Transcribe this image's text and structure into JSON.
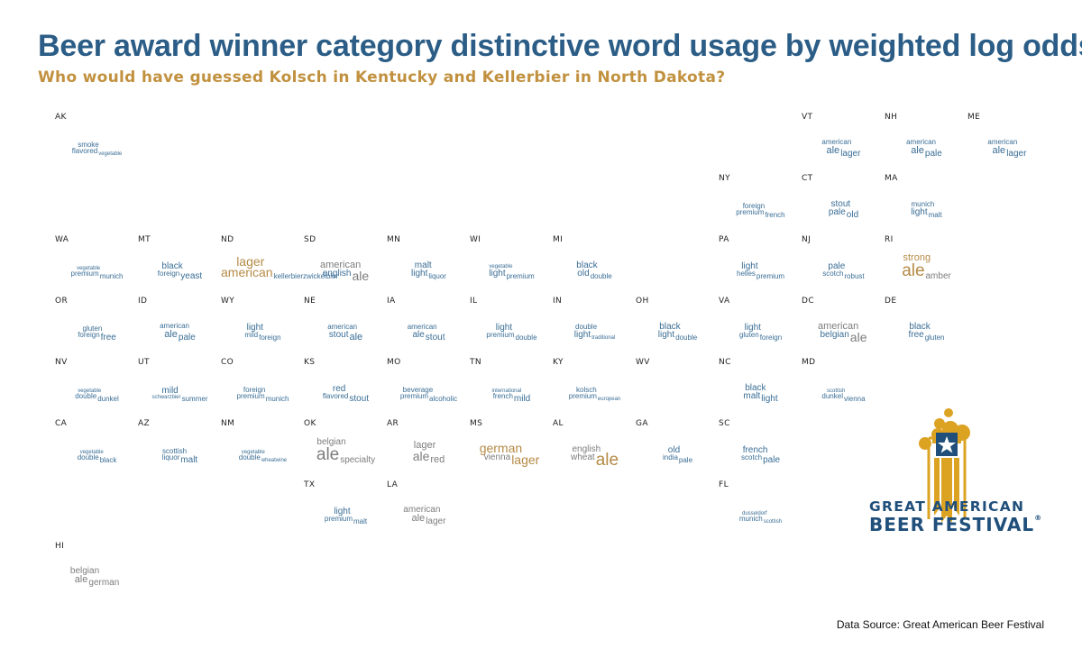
{
  "header": {
    "title": "Beer award winner category distinctive word usage by weighted log odds",
    "subtitle": "Who would have guessed Kolsch in Kentucky and Kellerbier in North Dakota?"
  },
  "footer": {
    "source": "Data Source: Great American Beer Festival"
  },
  "logo": {
    "line1": "GREAT AMERICAN",
    "line2": "BEER FESTIVAL",
    "mark": "®"
  },
  "colors": {
    "title": "#2b5d86",
    "subtitle": "#c1913f",
    "blue": "#3a6e96",
    "grey": "#7d7d7d",
    "gold": "#b58b46",
    "logo_gold": "#dca323",
    "logo_blue": "#1f4f7a"
  },
  "states": [
    {
      "abbr": "AK",
      "words": [
        {
          "t": "smoke",
          "c": "b",
          "s": 1
        },
        {
          "t": "flavored",
          "c": "b",
          "s": 1
        },
        {
          "t": "vegetable",
          "c": "b",
          "s": 0
        }
      ]
    },
    {
      "abbr": "VT",
      "words": [
        {
          "t": "american",
          "c": "b",
          "s": 1
        },
        {
          "t": "ale",
          "c": "b",
          "s": 3
        },
        {
          "t": "lager",
          "c": "b",
          "s": 2
        }
      ]
    },
    {
      "abbr": "NH",
      "words": [
        {
          "t": "american",
          "c": "b",
          "s": 1
        },
        {
          "t": "ale",
          "c": "b",
          "s": 3
        },
        {
          "t": "pale",
          "c": "b",
          "s": 2
        }
      ]
    },
    {
      "abbr": "ME",
      "words": [
        {
          "t": "american",
          "c": "b",
          "s": 1
        },
        {
          "t": "ale",
          "c": "b",
          "s": 3
        },
        {
          "t": "lager",
          "c": "b",
          "s": 2
        }
      ]
    },
    {
      "abbr": "NY",
      "words": [
        {
          "t": "foreign",
          "c": "b",
          "s": 1
        },
        {
          "t": "premium",
          "c": "b",
          "s": 1
        },
        {
          "t": "french",
          "c": "b",
          "s": 1
        }
      ]
    },
    {
      "abbr": "CT",
      "words": [
        {
          "t": "stout",
          "c": "b",
          "s": 2
        },
        {
          "t": "pale",
          "c": "b",
          "s": 2
        },
        {
          "t": "old",
          "c": "b",
          "s": 2
        }
      ]
    },
    {
      "abbr": "MA",
      "words": [
        {
          "t": "munich",
          "c": "b",
          "s": 1
        },
        {
          "t": "light",
          "c": "b",
          "s": 2
        },
        {
          "t": "malt",
          "c": "b",
          "s": 1
        }
      ]
    },
    {
      "abbr": "WA",
      "words": [
        {
          "t": "vegetable",
          "c": "b",
          "s": 0
        },
        {
          "t": "premium",
          "c": "b",
          "s": 1
        },
        {
          "t": "munich",
          "c": "b",
          "s": 1
        }
      ]
    },
    {
      "abbr": "MT",
      "words": [
        {
          "t": "black",
          "c": "b",
          "s": 2
        },
        {
          "t": "foreign",
          "c": "b",
          "s": 1
        },
        {
          "t": "yeast",
          "c": "b",
          "s": 2
        }
      ]
    },
    {
      "abbr": "ND",
      "words": [
        {
          "t": "lager",
          "c": "g",
          "s": 4
        },
        {
          "t": "american",
          "c": "g",
          "s": 4
        },
        {
          "t": "kellerbierzwickelbier",
          "c": "b",
          "s": 1
        }
      ]
    },
    {
      "abbr": "SD",
      "words": [
        {
          "t": "american",
          "c": "y",
          "s": 3
        },
        {
          "t": "english",
          "c": "b",
          "s": 2
        },
        {
          "t": "ale",
          "c": "y",
          "s": 4
        }
      ]
    },
    {
      "abbr": "MN",
      "words": [
        {
          "t": "malt",
          "c": "b",
          "s": 2
        },
        {
          "t": "light",
          "c": "b",
          "s": 2
        },
        {
          "t": "liquor",
          "c": "b",
          "s": 1
        }
      ]
    },
    {
      "abbr": "WI",
      "words": [
        {
          "t": "vegetable",
          "c": "b",
          "s": 0
        },
        {
          "t": "light",
          "c": "b",
          "s": 2
        },
        {
          "t": "premium",
          "c": "b",
          "s": 1
        }
      ]
    },
    {
      "abbr": "MI",
      "words": [
        {
          "t": "black",
          "c": "b",
          "s": 2
        },
        {
          "t": "old",
          "c": "b",
          "s": 2
        },
        {
          "t": "double",
          "c": "b",
          "s": 1
        }
      ]
    },
    {
      "abbr": "PA",
      "words": [
        {
          "t": "light",
          "c": "b",
          "s": 2
        },
        {
          "t": "helles",
          "c": "b",
          "s": 1
        },
        {
          "t": "premium",
          "c": "b",
          "s": 1
        }
      ]
    },
    {
      "abbr": "NJ",
      "words": [
        {
          "t": "pale",
          "c": "b",
          "s": 2
        },
        {
          "t": "scotch",
          "c": "b",
          "s": 1
        },
        {
          "t": "robust",
          "c": "b",
          "s": 1
        }
      ]
    },
    {
      "abbr": "RI",
      "words": [
        {
          "t": "strong",
          "c": "g",
          "s": 3
        },
        {
          "t": "ale",
          "c": "g",
          "s": 5
        },
        {
          "t": "amber",
          "c": "y",
          "s": 2
        }
      ]
    },
    {
      "abbr": "OR",
      "words": [
        {
          "t": "gluten",
          "c": "b",
          "s": 1
        },
        {
          "t": "foreign",
          "c": "b",
          "s": 1
        },
        {
          "t": "free",
          "c": "b",
          "s": 2
        }
      ]
    },
    {
      "abbr": "ID",
      "words": [
        {
          "t": "american",
          "c": "b",
          "s": 1
        },
        {
          "t": "ale",
          "c": "b",
          "s": 3
        },
        {
          "t": "pale",
          "c": "b",
          "s": 2
        }
      ]
    },
    {
      "abbr": "WY",
      "words": [
        {
          "t": "light",
          "c": "b",
          "s": 2
        },
        {
          "t": "mild",
          "c": "b",
          "s": 1
        },
        {
          "t": "foreign",
          "c": "b",
          "s": 1
        }
      ]
    },
    {
      "abbr": "NE",
      "words": [
        {
          "t": "american",
          "c": "b",
          "s": 1
        },
        {
          "t": "stout",
          "c": "b",
          "s": 2
        },
        {
          "t": "ale",
          "c": "b",
          "s": 3
        }
      ]
    },
    {
      "abbr": "IA",
      "words": [
        {
          "t": "american",
          "c": "b",
          "s": 1
        },
        {
          "t": "ale",
          "c": "b",
          "s": 2
        },
        {
          "t": "stout",
          "c": "b",
          "s": 2
        }
      ]
    },
    {
      "abbr": "IL",
      "words": [
        {
          "t": "light",
          "c": "b",
          "s": 2
        },
        {
          "t": "premium",
          "c": "b",
          "s": 1
        },
        {
          "t": "double",
          "c": "b",
          "s": 1
        }
      ]
    },
    {
      "abbr": "IN",
      "words": [
        {
          "t": "double",
          "c": "b",
          "s": 1
        },
        {
          "t": "light",
          "c": "b",
          "s": 2
        },
        {
          "t": "traditional",
          "c": "b",
          "s": 0
        }
      ]
    },
    {
      "abbr": "OH",
      "words": [
        {
          "t": "black",
          "c": "b",
          "s": 2
        },
        {
          "t": "light",
          "c": "b",
          "s": 2
        },
        {
          "t": "double",
          "c": "b",
          "s": 1
        }
      ]
    },
    {
      "abbr": "VA",
      "words": [
        {
          "t": "light",
          "c": "b",
          "s": 2
        },
        {
          "t": "gluten",
          "c": "b",
          "s": 1
        },
        {
          "t": "foreign",
          "c": "b",
          "s": 1
        }
      ]
    },
    {
      "abbr": "DC",
      "words": [
        {
          "t": "american",
          "c": "y",
          "s": 3
        },
        {
          "t": "belgian",
          "c": "b",
          "s": 2
        },
        {
          "t": "ale",
          "c": "y",
          "s": 4
        }
      ]
    },
    {
      "abbr": "DE",
      "words": [
        {
          "t": "black",
          "c": "b",
          "s": 2
        },
        {
          "t": "free",
          "c": "b",
          "s": 2
        },
        {
          "t": "gluten",
          "c": "b",
          "s": 1
        }
      ]
    },
    {
      "abbr": "NV",
      "words": [
        {
          "t": "vegetable",
          "c": "b",
          "s": 0
        },
        {
          "t": "double",
          "c": "b",
          "s": 1
        },
        {
          "t": "dunkel",
          "c": "b",
          "s": 1
        }
      ]
    },
    {
      "abbr": "UT",
      "words": [
        {
          "t": "mild",
          "c": "b",
          "s": 2
        },
        {
          "t": "schwarzbier",
          "c": "b",
          "s": 0
        },
        {
          "t": "summer",
          "c": "b",
          "s": 1
        }
      ]
    },
    {
      "abbr": "CO",
      "words": [
        {
          "t": "foreign",
          "c": "b",
          "s": 1
        },
        {
          "t": "premium",
          "c": "b",
          "s": 1
        },
        {
          "t": "munich",
          "c": "b",
          "s": 1
        }
      ]
    },
    {
      "abbr": "KS",
      "words": [
        {
          "t": "red",
          "c": "b",
          "s": 2
        },
        {
          "t": "flavored",
          "c": "b",
          "s": 1
        },
        {
          "t": "stout",
          "c": "b",
          "s": 2
        }
      ]
    },
    {
      "abbr": "MO",
      "words": [
        {
          "t": "beverage",
          "c": "b",
          "s": 1
        },
        {
          "t": "premium",
          "c": "b",
          "s": 1
        },
        {
          "t": "alcoholic",
          "c": "b",
          "s": 1
        }
      ]
    },
    {
      "abbr": "TN",
      "words": [
        {
          "t": "international",
          "c": "b",
          "s": 0
        },
        {
          "t": "french",
          "c": "b",
          "s": 1
        },
        {
          "t": "mild",
          "c": "b",
          "s": 2
        }
      ]
    },
    {
      "abbr": "KY",
      "words": [
        {
          "t": "kolsch",
          "c": "b",
          "s": 1
        },
        {
          "t": "premium",
          "c": "b",
          "s": 1
        },
        {
          "t": "european",
          "c": "b",
          "s": 0
        }
      ]
    },
    {
      "abbr": "WV",
      "words": []
    },
    {
      "abbr": "NC",
      "words": [
        {
          "t": "black",
          "c": "b",
          "s": 2
        },
        {
          "t": "malt",
          "c": "b",
          "s": 2
        },
        {
          "t": "light",
          "c": "b",
          "s": 2
        }
      ]
    },
    {
      "abbr": "MD",
      "words": [
        {
          "t": "scottish",
          "c": "b",
          "s": 0
        },
        {
          "t": "dunkel",
          "c": "b",
          "s": 1
        },
        {
          "t": "vienna",
          "c": "b",
          "s": 1
        }
      ]
    },
    {
      "abbr": "CA",
      "words": [
        {
          "t": "vegetable",
          "c": "b",
          "s": 0
        },
        {
          "t": "double",
          "c": "b",
          "s": 1
        },
        {
          "t": "black",
          "c": "b",
          "s": 1
        }
      ]
    },
    {
      "abbr": "AZ",
      "words": [
        {
          "t": "scottish",
          "c": "b",
          "s": 1
        },
        {
          "t": "liquor",
          "c": "b",
          "s": 1
        },
        {
          "t": "malt",
          "c": "b",
          "s": 2
        }
      ]
    },
    {
      "abbr": "NM",
      "words": [
        {
          "t": "vegetable",
          "c": "b",
          "s": 0
        },
        {
          "t": "double",
          "c": "b",
          "s": 1
        },
        {
          "t": "wheatwine",
          "c": "b",
          "s": 0
        }
      ]
    },
    {
      "abbr": "OK",
      "words": [
        {
          "t": "belgian",
          "c": "y",
          "s": 2
        },
        {
          "t": "ale",
          "c": "y",
          "s": 5
        },
        {
          "t": "specialty",
          "c": "y",
          "s": 2
        }
      ]
    },
    {
      "abbr": "AR",
      "words": [
        {
          "t": "lager",
          "c": "y",
          "s": 3
        },
        {
          "t": "ale",
          "c": "y",
          "s": 4
        },
        {
          "t": "red",
          "c": "y",
          "s": 3
        }
      ]
    },
    {
      "abbr": "MS",
      "words": [
        {
          "t": "german",
          "c": "g",
          "s": 4
        },
        {
          "t": "vienna",
          "c": "y",
          "s": 2
        },
        {
          "t": "lager",
          "c": "g",
          "s": 4
        }
      ]
    },
    {
      "abbr": "AL",
      "words": [
        {
          "t": "english",
          "c": "y",
          "s": 2
        },
        {
          "t": "wheat",
          "c": "y",
          "s": 2
        },
        {
          "t": "ale",
          "c": "g",
          "s": 5
        }
      ]
    },
    {
      "abbr": "GA",
      "words": [
        {
          "t": "old",
          "c": "b",
          "s": 2
        },
        {
          "t": "india",
          "c": "b",
          "s": 1
        },
        {
          "t": "pale",
          "c": "b",
          "s": 1
        }
      ]
    },
    {
      "abbr": "SC",
      "words": [
        {
          "t": "french",
          "c": "b",
          "s": 2
        },
        {
          "t": "scotch",
          "c": "b",
          "s": 1
        },
        {
          "t": "pale",
          "c": "b",
          "s": 2
        }
      ]
    },
    {
      "abbr": "TX",
      "words": [
        {
          "t": "light",
          "c": "b",
          "s": 2
        },
        {
          "t": "premium",
          "c": "b",
          "s": 1
        },
        {
          "t": "malt",
          "c": "b",
          "s": 1
        }
      ]
    },
    {
      "abbr": "LA",
      "words": [
        {
          "t": "american",
          "c": "y",
          "s": 2
        },
        {
          "t": "ale",
          "c": "y",
          "s": 3
        },
        {
          "t": "lager",
          "c": "y",
          "s": 2
        }
      ]
    },
    {
      "abbr": "FL",
      "words": [
        {
          "t": "dusseldorf",
          "c": "b",
          "s": 0
        },
        {
          "t": "munich",
          "c": "b",
          "s": 1
        },
        {
          "t": "scottish",
          "c": "b",
          "s": 0
        }
      ]
    },
    {
      "abbr": "HI",
      "words": [
        {
          "t": "belgian",
          "c": "y",
          "s": 2
        },
        {
          "t": "ale",
          "c": "y",
          "s": 3
        },
        {
          "t": "german",
          "c": "y",
          "s": 2
        }
      ]
    }
  ]
}
